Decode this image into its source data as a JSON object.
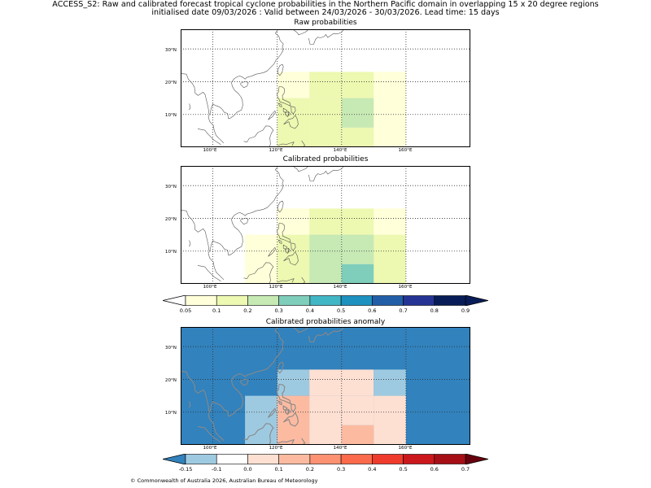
{
  "title": {
    "line1": "ACCESS_S2: Raw and calibrated forecast tropical cyclone probabilities in the Northern Pacific domain in overlapping 15 x 20 degree regions",
    "line2": "initialised date 09/03/2026 :  Valid between 24/03/2026 - 30/03/2026. Lead time: 15 days"
  },
  "axes": {
    "lat_labels": [
      "30°N",
      "20°N",
      "10°N"
    ],
    "lon_labels": [
      "100°E",
      "120°E",
      "140°E",
      "160°E"
    ],
    "lon_range_deg": [
      90,
      180
    ],
    "lat_range_deg": [
      0,
      36
    ]
  },
  "panels": [
    {
      "title": "Raw probabilities",
      "cells": [
        {
          "lon": [
            120,
            130
          ],
          "lat": [
            15,
            23
          ],
          "value": 0.07
        },
        {
          "lon": [
            130,
            150
          ],
          "lat": [
            15,
            23
          ],
          "value": 0.15
        },
        {
          "lon": [
            150,
            160
          ],
          "lat": [
            15,
            23
          ],
          "value": 0.07
        },
        {
          "lon": [
            120,
            130
          ],
          "lat": [
            0,
            15
          ],
          "value": 0.15
        },
        {
          "lon": [
            130,
            140
          ],
          "lat": [
            0,
            15
          ],
          "value": 0.15
        },
        {
          "lon": [
            140,
            150
          ],
          "lat": [
            0,
            6
          ],
          "value": 0.15
        },
        {
          "lon": [
            140,
            150
          ],
          "lat": [
            6,
            15
          ],
          "value": 0.25
        },
        {
          "lon": [
            150,
            160
          ],
          "lat": [
            0,
            15
          ],
          "value": 0.07
        }
      ]
    },
    {
      "title": "Calibrated probabilities",
      "cells": [
        {
          "lon": [
            120,
            130
          ],
          "lat": [
            15,
            23
          ],
          "value": 0.07
        },
        {
          "lon": [
            130,
            150
          ],
          "lat": [
            15,
            23
          ],
          "value": 0.15
        },
        {
          "lon": [
            150,
            160
          ],
          "lat": [
            15,
            23
          ],
          "value": 0.07
        },
        {
          "lon": [
            110,
            120
          ],
          "lat": [
            0,
            15
          ],
          "value": 0.07
        },
        {
          "lon": [
            120,
            130
          ],
          "lat": [
            0,
            15
          ],
          "value": 0.15
        },
        {
          "lon": [
            130,
            140
          ],
          "lat": [
            0,
            15
          ],
          "value": 0.25
        },
        {
          "lon": [
            140,
            150
          ],
          "lat": [
            6,
            15
          ],
          "value": 0.25
        },
        {
          "lon": [
            140,
            150
          ],
          "lat": [
            0,
            6
          ],
          "value": 0.35
        },
        {
          "lon": [
            150,
            160
          ],
          "lat": [
            0,
            15
          ],
          "value": 0.15
        }
      ]
    },
    {
      "title": "Calibrated probabilities anomaly",
      "background_value": -0.2,
      "cells": [
        {
          "lon": [
            120,
            130
          ],
          "lat": [
            15,
            23
          ],
          "value": -0.12
        },
        {
          "lon": [
            130,
            150
          ],
          "lat": [
            15,
            23
          ],
          "value": 0.0
        },
        {
          "lon": [
            150,
            160
          ],
          "lat": [
            15,
            23
          ],
          "value": -0.12
        },
        {
          "lon": [
            110,
            120
          ],
          "lat": [
            0,
            15
          ],
          "value": -0.12
        },
        {
          "lon": [
            120,
            130
          ],
          "lat": [
            0,
            15
          ],
          "value": 0.15
        },
        {
          "lon": [
            130,
            140
          ],
          "lat": [
            0,
            15
          ],
          "value": 0.05
        },
        {
          "lon": [
            140,
            150
          ],
          "lat": [
            6,
            15
          ],
          "value": 0.05
        },
        {
          "lon": [
            140,
            150
          ],
          "lat": [
            0,
            6
          ],
          "value": 0.15
        },
        {
          "lon": [
            150,
            160
          ],
          "lat": [
            0,
            15
          ],
          "value": 0.0
        }
      ]
    }
  ],
  "colorbar_prob": {
    "ticks": [
      "0.05",
      "0.1",
      "0.2",
      "0.3",
      "0.4",
      "0.5",
      "0.6",
      "0.7",
      "0.8",
      "0.9"
    ],
    "bounds": [
      0.05,
      0.1,
      0.2,
      0.3,
      0.4,
      0.5,
      0.6,
      0.7,
      0.8,
      0.9
    ],
    "under_color": "#ffffff",
    "over_color": "#081d58",
    "colors": [
      "#ffffd9",
      "#edf8b1",
      "#c7e9b4",
      "#7fcdbb",
      "#41b6c4",
      "#1d91c0",
      "#225ea8",
      "#253494",
      "#081d58"
    ]
  },
  "colorbar_anom": {
    "ticks": [
      "-0.15",
      "-0.1",
      "0.0",
      "0.1",
      "0.2",
      "0.3",
      "0.4",
      "0.5",
      "0.6",
      "0.7"
    ],
    "bounds": [
      -0.15,
      -0.1,
      0.0,
      0.1,
      0.2,
      0.3,
      0.4,
      0.5,
      0.6,
      0.7
    ],
    "under_color": "#3182bd",
    "over_color": "#67000d",
    "colors": [
      "#9ecae1",
      "#ffffff",
      "#fee0d2",
      "#fcbba1",
      "#fc9272",
      "#fb6a4a",
      "#ef3b2c",
      "#cb181d",
      "#a50f15"
    ]
  },
  "footer": "© Commonwealth of Australia 2026, Australian Bureau of Meteorology"
}
